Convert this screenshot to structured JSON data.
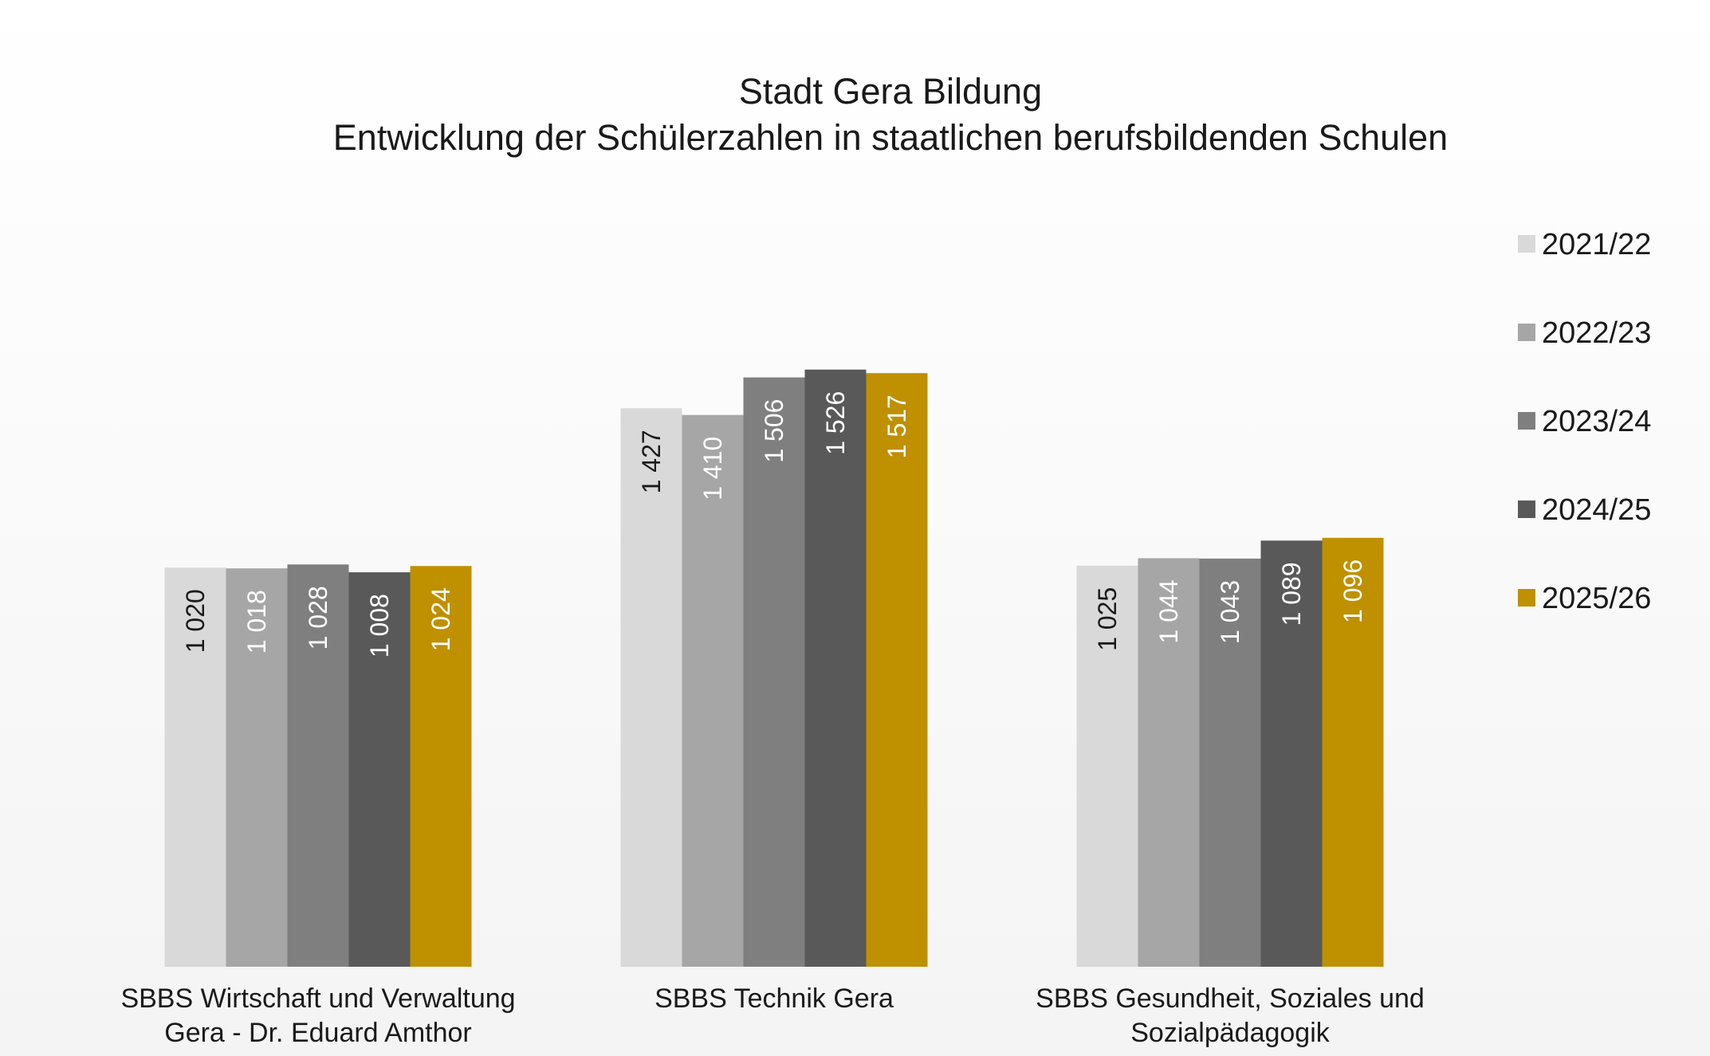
{
  "chart_data": {
    "type": "bar",
    "title": "Stadt Gera Bildung",
    "subtitle": "Entwicklung der Schülerzahlen in staatlichen berufsbildenden Schulen",
    "categories": [
      "SBBS Wirtschaft und Verwaltung Gera - Dr. Eduard Amthor",
      "SBBS Technik Gera",
      "SBBS Gesundheit, Soziales und Sozialpädagogik"
    ],
    "series": [
      {
        "name": "2021/22",
        "color": "#d9d9d9",
        "values": [
          1020,
          1427,
          1025
        ],
        "value_labels": [
          "1 020",
          "1 427",
          "1 025"
        ]
      },
      {
        "name": "2022/23",
        "color": "#a6a6a6",
        "values": [
          1018,
          1410,
          1044
        ],
        "value_labels": [
          "1 018",
          "1 410",
          "1 044"
        ]
      },
      {
        "name": "2023/24",
        "color": "#7f7f7f",
        "values": [
          1028,
          1506,
          1043
        ],
        "value_labels": [
          "1 028",
          "1 506",
          "1 043"
        ]
      },
      {
        "name": "2024/25",
        "color": "#595959",
        "values": [
          1008,
          1526,
          1089
        ],
        "value_labels": [
          "1 008",
          "1 526",
          "1 089"
        ]
      },
      {
        "name": "2025/26",
        "color": "#bf9000",
        "values": [
          1024,
          1517,
          1096
        ],
        "value_labels": [
          "1 024",
          "1 517",
          "1 096"
        ]
      }
    ],
    "legend": "right"
  }
}
